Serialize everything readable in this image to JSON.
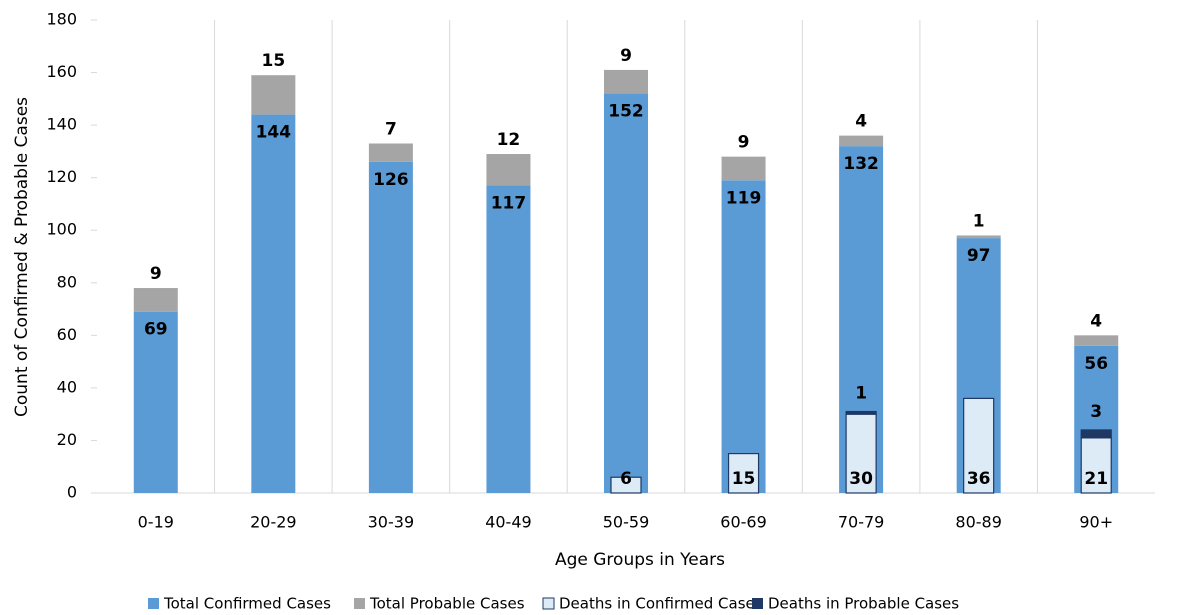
{
  "chart_data": {
    "type": "bar",
    "x_label": "Age Groups in Years",
    "y_label": "Count of Confirmed & Probable Cases",
    "categories": [
      "0-19",
      "20-29",
      "30-39",
      "40-49",
      "50-59",
      "60-69",
      "70-79",
      "80-89",
      "90+"
    ],
    "series": [
      {
        "name": "Total Confirmed Cases",
        "color": "#5b9bd5",
        "values": [
          69,
          144,
          126,
          117,
          152,
          119,
          132,
          97,
          56
        ]
      },
      {
        "name": "Total Probable Cases",
        "color": "#a5a5a5",
        "values": [
          9,
          15,
          7,
          12,
          9,
          9,
          4,
          1,
          4
        ]
      },
      {
        "name": "Deaths in Confirmed Cases",
        "color": "#ddebf7",
        "values": [
          null,
          null,
          null,
          null,
          6,
          15,
          30,
          36,
          21
        ]
      },
      {
        "name": "Deaths in Probable Cases",
        "color": "#1f3864",
        "values": [
          null,
          null,
          null,
          null,
          null,
          null,
          1,
          null,
          3
        ]
      }
    ],
    "ylim": [
      0,
      180
    ],
    "yticks": [
      0,
      20,
      40,
      60,
      80,
      100,
      120,
      140,
      160,
      180
    ],
    "grid": true
  }
}
